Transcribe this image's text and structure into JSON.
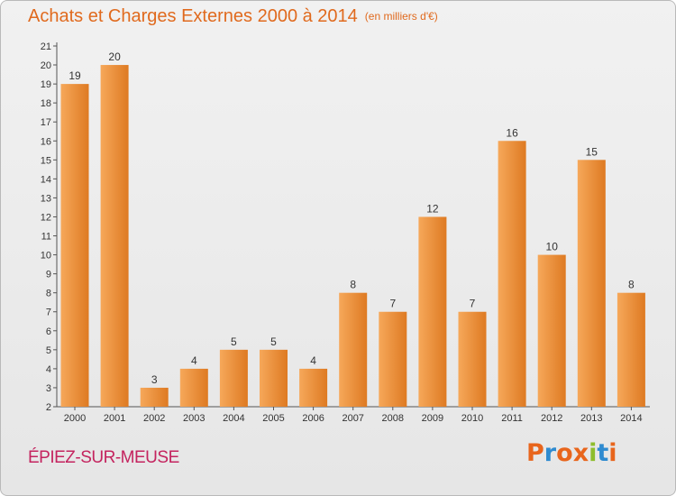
{
  "header": {
    "title": "Achats et Charges Externes 2000 à 2014",
    "unit": "(en milliers d'€)"
  },
  "footer": {
    "commune": "ÉPIEZ-SUR-MEUSE",
    "logo_letters": [
      "P",
      "r",
      "o",
      "x",
      "i",
      "t",
      "i"
    ],
    "logo_colors": [
      "#e8651c",
      "#2f8bd0",
      "#e8651c",
      "#e8651c",
      "#8ebd2c",
      "#2f8bd0",
      "#e8651c"
    ]
  },
  "colors": {
    "title": "#e06a1e",
    "commune": "#c4245f",
    "bar_light": "#f6a85a",
    "bar_dark": "#de7a22"
  },
  "chart_data": {
    "type": "bar",
    "title": "Achats et Charges Externes 2000 à 2014",
    "subtitle": "(en milliers d'€)",
    "categories": [
      "2000",
      "2001",
      "2002",
      "2003",
      "2004",
      "2005",
      "2006",
      "2007",
      "2008",
      "2009",
      "2010",
      "2011",
      "2012",
      "2013",
      "2014"
    ],
    "values": [
      19,
      20,
      3,
      4,
      5,
      5,
      4,
      8,
      7,
      12,
      7,
      16,
      10,
      15,
      8
    ],
    "ylim": [
      2,
      21
    ],
    "yticks": [
      2,
      3,
      4,
      5,
      6,
      7,
      8,
      9,
      10,
      11,
      12,
      13,
      14,
      15,
      16,
      17,
      18,
      19,
      20,
      21
    ],
    "grid": false,
    "data_labels": true
  }
}
